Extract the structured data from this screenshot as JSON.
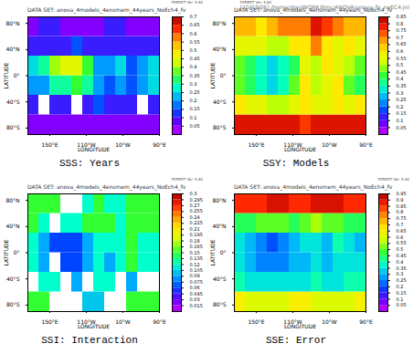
{
  "chart_data": [
    {
      "type": "heatmap",
      "title": "SSS: Years",
      "subtitle": "DATA SET: anova_4models_4ensmem_44years_NoEch4_fv",
      "annotations": [
        "FERRET Ver. 5.80"
      ],
      "x_label": "LONGITUDE",
      "y_label": "LATITUDE",
      "xlim": [
        90,
        450
      ],
      "xticks": [
        {
          "value": 150,
          "label": "150°E"
        },
        {
          "value": 250,
          "label": "110°W"
        },
        {
          "value": 350,
          "label": "10°W"
        },
        {
          "value": 450,
          "label": "90°E"
        }
      ],
      "ylim": [
        -90,
        90
      ],
      "yticks": [
        {
          "value": -80,
          "label": "80°S"
        },
        {
          "value": -40,
          "label": "40°S"
        },
        {
          "value": 0,
          "label": "0°"
        },
        {
          "value": 40,
          "label": "40°N"
        },
        {
          "value": 80,
          "label": "80°N"
        }
      ],
      "lon_edges": [
        90,
        120,
        150,
        180,
        210,
        240,
        270,
        300,
        330,
        360,
        390,
        420,
        450
      ],
      "lat_edges": [
        -90,
        -60,
        -30,
        0,
        30,
        60,
        90
      ],
      "cells": [
        [
          0.05,
          0.05,
          0.05,
          0.05,
          0.05,
          0.05,
          0.05,
          0.05,
          0.05,
          0.05,
          0.05,
          0.05
        ],
        [
          0.1,
          null,
          0.1,
          0.1,
          null,
          0.1,
          0.15,
          0.1,
          0.1,
          0.1,
          null,
          0.1
        ],
        [
          0.2,
          0.2,
          0.3,
          0.3,
          0.35,
          0.3,
          0.2,
          0.15,
          0.2,
          0.15,
          0.2,
          0.25
        ],
        [
          0.25,
          0.3,
          0.4,
          0.45,
          0.45,
          0.35,
          0.2,
          0.2,
          0.25,
          0.15,
          0.2,
          0.25
        ],
        [
          0.1,
          0.1,
          0.1,
          0.1,
          0.15,
          0.1,
          0.1,
          0.1,
          0.1,
          0.1,
          0.1,
          0.1
        ],
        [
          0.05,
          0.1,
          0.1,
          0.05,
          0.05,
          0.05,
          0.05,
          0.1,
          0.1,
          0.05,
          0.05,
          0.05
        ]
      ],
      "colorbar_range": [
        0,
        0.7
      ],
      "colorbar_ticks": [
        0.05,
        0.1,
        0.15,
        0.2,
        0.25,
        0.3,
        0.35,
        0.4,
        0.45,
        0.5,
        0.55,
        0.6,
        0.65,
        0.7
      ]
    },
    {
      "type": "heatmap",
      "title": "SSY: Models",
      "subtitle": "DATA SET: anova_4models_4ensmem_44years_NoEch4_fv",
      "annotations": [
        "FERRET Ver. 5.80",
        "[10/03/06] /home/don/WORK/Pmc/ANOVA/anova_fp_noEC4.jnl"
      ],
      "x_label": "LONGITUDE",
      "y_label": "LATITUDE",
      "xlim": [
        90,
        450
      ],
      "xticks": [
        {
          "value": 150,
          "label": "150°E"
        },
        {
          "value": 250,
          "label": "110°W"
        },
        {
          "value": 350,
          "label": "10°W"
        },
        {
          "value": 450,
          "label": "90°E"
        }
      ],
      "ylim": [
        -90,
        90
      ],
      "yticks": [
        {
          "value": -80,
          "label": "80°S"
        },
        {
          "value": -40,
          "label": "40°S"
        },
        {
          "value": 0,
          "label": "0°"
        },
        {
          "value": 40,
          "label": "40°N"
        },
        {
          "value": 80,
          "label": "80°N"
        }
      ],
      "lon_edges": [
        90,
        120,
        150,
        180,
        210,
        240,
        270,
        300,
        330,
        360,
        390,
        420,
        450
      ],
      "lat_edges": [
        -90,
        -60,
        -30,
        0,
        30,
        60,
        90
      ],
      "cells": [
        [
          0.8,
          0.8,
          0.8,
          0.8,
          0.8,
          0.8,
          0.75,
          0.8,
          0.8,
          0.8,
          0.8,
          0.8
        ],
        [
          0.6,
          0.55,
          0.55,
          0.5,
          0.5,
          0.55,
          0.6,
          0.55,
          0.55,
          0.6,
          0.55,
          0.6
        ],
        [
          0.45,
          0.4,
          0.35,
          0.3,
          0.35,
          0.45,
          0.6,
          0.5,
          0.55,
          0.6,
          0.45,
          0.4
        ],
        [
          0.45,
          0.4,
          0.35,
          0.3,
          0.35,
          0.4,
          0.55,
          0.5,
          0.6,
          0.55,
          0.5,
          0.45
        ],
        [
          0.55,
          0.55,
          0.55,
          0.5,
          0.5,
          0.6,
          0.6,
          0.7,
          0.6,
          0.55,
          0.6,
          0.55
        ],
        [
          0.65,
          0.65,
          0.6,
          0.65,
          0.7,
          0.7,
          0.7,
          0.8,
          0.75,
          0.7,
          0.65,
          0.65
        ]
      ],
      "colorbar_range": [
        0,
        0.85
      ],
      "colorbar_ticks": [
        0.05,
        0.1,
        0.15,
        0.2,
        0.25,
        0.3,
        0.35,
        0.4,
        0.45,
        0.5,
        0.55,
        0.6,
        0.65,
        0.7,
        0.75,
        0.8,
        0.85
      ]
    },
    {
      "type": "heatmap",
      "title": "SSI: Interaction",
      "subtitle": "DATA SET: anova_4models_4ensmem_44years_NoEch4_fv",
      "annotations": [
        "FERRET Ver. 5.80"
      ],
      "x_label": "LONGITUDE",
      "y_label": "LATITUDE",
      "xlim": [
        90,
        450
      ],
      "xticks": [
        {
          "value": 150,
          "label": "150°E"
        },
        {
          "value": 250,
          "label": "110°W"
        },
        {
          "value": 350,
          "label": "10°W"
        },
        {
          "value": 450,
          "label": "90°E"
        }
      ],
      "ylim": [
        -90,
        90
      ],
      "yticks": [
        {
          "value": -80,
          "label": "80°S"
        },
        {
          "value": -40,
          "label": "40°S"
        },
        {
          "value": 0,
          "label": "0°"
        },
        {
          "value": 40,
          "label": "40°N"
        },
        {
          "value": 80,
          "label": "80°N"
        }
      ],
      "lon_edges": [
        90,
        120,
        150,
        180,
        210,
        240,
        270,
        300,
        330,
        360,
        390,
        420,
        450
      ],
      "lat_edges": [
        -90,
        -60,
        -30,
        0,
        30,
        60,
        90
      ],
      "cells": [
        [
          0.15,
          0.15,
          null,
          null,
          null,
          0.1,
          0.1,
          null,
          null,
          0.15,
          0.15,
          0.15
        ],
        [
          null,
          0.12,
          0.12,
          null,
          0.09,
          null,
          0.12,
          0.12,
          null,
          0.09,
          null,
          null
        ],
        [
          0.12,
          0.09,
          null,
          0.06,
          0.06,
          0.09,
          0.12,
          0.09,
          0.12,
          0.15,
          0.12,
          0.12
        ],
        [
          0.12,
          0.09,
          0.06,
          0.06,
          0.06,
          0.09,
          0.12,
          0.12,
          0.12,
          0.15,
          0.12,
          0.12
        ],
        [
          0.15,
          0.12,
          null,
          0.12,
          0.12,
          0.15,
          0.15,
          0.15,
          0.12,
          0.15,
          0.15,
          0.15
        ],
        [
          0.15,
          0.15,
          0.15,
          null,
          null,
          0.12,
          0.15,
          0.12,
          0.12,
          0.15,
          0.15,
          0.15
        ]
      ],
      "colorbar_range": [
        0,
        0.3
      ],
      "colorbar_ticks": [
        0.015,
        0.03,
        0.045,
        0.06,
        0.075,
        0.09,
        0.105,
        0.12,
        0.135,
        0.15,
        0.165,
        0.18,
        0.195,
        0.21,
        0.225,
        0.24,
        0.255,
        0.27,
        0.285,
        0.3
      ]
    },
    {
      "type": "heatmap",
      "title": "SSE: Error",
      "subtitle": "DATA SET: anova_4models_4ensmem_44years_NoEch4_fv",
      "annotations": [
        "FERRET Ver. 5.80"
      ],
      "x_label": "LONGITUDE",
      "y_label": "LATITUDE",
      "xlim": [
        90,
        450
      ],
      "xticks": [
        {
          "value": 150,
          "label": "150°E"
        },
        {
          "value": 250,
          "label": "110°W"
        },
        {
          "value": 350,
          "label": "10°W"
        },
        {
          "value": 450,
          "label": "90°E"
        }
      ],
      "ylim": [
        -90,
        90
      ],
      "yticks": [
        {
          "value": -80,
          "label": "80°S"
        },
        {
          "value": -40,
          "label": "40°S"
        },
        {
          "value": 0,
          "label": "0°"
        },
        {
          "value": 40,
          "label": "40°N"
        },
        {
          "value": 80,
          "label": "80°N"
        }
      ],
      "lon_edges": [
        90,
        120,
        150,
        180,
        210,
        240,
        270,
        300,
        330,
        360,
        390,
        420,
        450
      ],
      "lat_edges": [
        -90,
        -60,
        -30,
        0,
        30,
        60,
        90
      ],
      "cells": [
        [
          0.65,
          0.6,
          0.6,
          0.6,
          0.6,
          0.65,
          0.65,
          0.6,
          0.6,
          0.6,
          0.6,
          0.65
        ],
        [
          0.4,
          0.35,
          0.35,
          0.35,
          0.35,
          0.35,
          0.35,
          0.4,
          0.35,
          0.35,
          0.4,
          0.4
        ],
        [
          0.35,
          0.3,
          0.25,
          0.25,
          0.25,
          0.3,
          0.3,
          0.35,
          0.3,
          0.35,
          0.35,
          0.35
        ],
        [
          0.35,
          0.3,
          0.25,
          0.2,
          0.25,
          0.3,
          0.35,
          0.35,
          0.3,
          0.4,
          0.35,
          0.3
        ],
        [
          0.45,
          0.45,
          0.5,
          0.5,
          0.5,
          0.45,
          0.5,
          0.55,
          0.5,
          0.5,
          0.45,
          0.45
        ],
        [
          0.85,
          0.85,
          0.85,
          0.9,
          0.9,
          0.85,
          0.85,
          0.9,
          0.9,
          0.9,
          0.85,
          0.85
        ]
      ],
      "colorbar_range": [
        0,
        0.95
      ],
      "colorbar_ticks": [
        0.05,
        0.1,
        0.15,
        0.2,
        0.25,
        0.3,
        0.35,
        0.4,
        0.45,
        0.5,
        0.55,
        0.6,
        0.65,
        0.7,
        0.75,
        0.8,
        0.85,
        0.9,
        0.95
      ]
    }
  ]
}
